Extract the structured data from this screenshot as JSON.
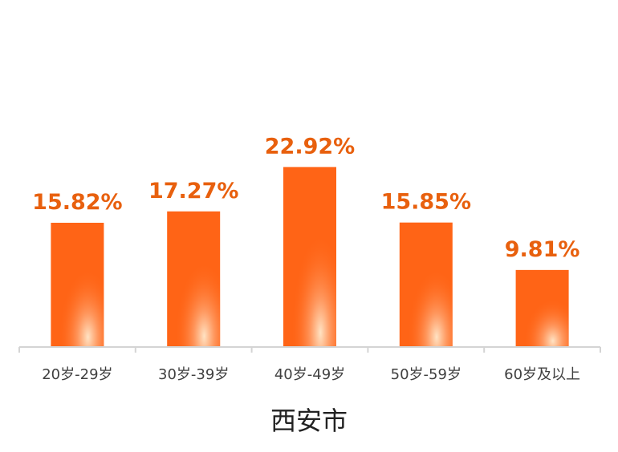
{
  "chart_data": {
    "type": "bar",
    "title": "西安市",
    "categories": [
      "20岁-29岁",
      "30岁-39岁",
      "40岁-49岁",
      "50岁-59岁",
      "60岁及以上"
    ],
    "values": [
      15.82,
      17.27,
      22.92,
      15.85,
      9.81
    ],
    "data_labels": [
      "15.82%",
      "17.27%",
      "22.92%",
      "15.85%",
      "9.81%"
    ],
    "xlabel": "",
    "ylabel": "",
    "ylim": [
      0,
      35
    ],
    "grid": false,
    "legend": "none",
    "colors": {
      "bar": "#ff6416",
      "bar_highlight": "#ffe3c4",
      "label": "#e8600e",
      "axis": "#d4d4d4"
    }
  }
}
